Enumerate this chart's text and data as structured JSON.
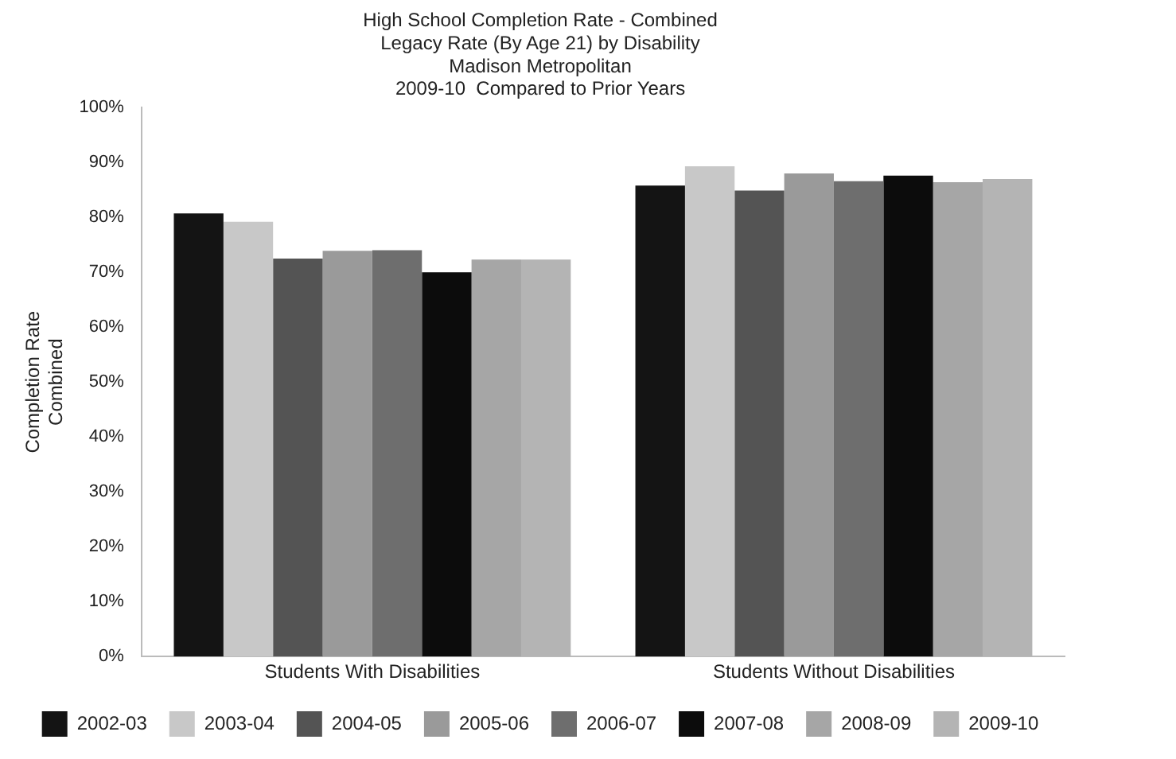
{
  "chart_data": {
    "type": "bar",
    "title": [
      "High School Completion Rate - Combined",
      "Legacy Rate (By Age 21) by Disability",
      "Madison Metropolitan",
      "2009-10  Compared to Prior Years"
    ],
    "ylabel": [
      "Completion Rate",
      "Combined"
    ],
    "categories": [
      "Students With Disabilities",
      "Students Without Disabilities"
    ],
    "series": [
      {
        "name": "2002-03",
        "color": "#141414",
        "values": [
          80.7,
          85.8
        ]
      },
      {
        "name": "2003-04",
        "color": "#c8c8c8",
        "values": [
          79.2,
          89.3
        ]
      },
      {
        "name": "2004-05",
        "color": "#545454",
        "values": [
          72.5,
          84.9
        ]
      },
      {
        "name": "2005-06",
        "color": "#9a9a9a",
        "values": [
          73.9,
          88
        ]
      },
      {
        "name": "2006-07",
        "color": "#6e6e6e",
        "values": [
          74,
          86.6
        ]
      },
      {
        "name": "2007-08",
        "color": "#0c0c0c",
        "values": [
          70,
          87.6
        ]
      },
      {
        "name": "2008-09",
        "color": "#a6a6a6",
        "values": [
          72.3,
          86.4
        ]
      },
      {
        "name": "2009-10",
        "color": "#b4b4b4",
        "values": [
          72.3,
          87
        ]
      }
    ],
    "ylim": [
      0,
      100
    ],
    "yticks": [
      {
        "value": 0,
        "label": "0%"
      },
      {
        "value": 10,
        "label": "10%"
      },
      {
        "value": 20,
        "label": "20%"
      },
      {
        "value": 30,
        "label": "30%"
      },
      {
        "value": 40,
        "label": "40%"
      },
      {
        "value": 50,
        "label": "50%"
      },
      {
        "value": 60,
        "label": "60%"
      },
      {
        "value": 70,
        "label": "70%"
      },
      {
        "value": 80,
        "label": "80%"
      },
      {
        "value": 90,
        "label": "90%"
      },
      {
        "value": 100,
        "label": "100%"
      }
    ],
    "grid": false,
    "legend": "bottom"
  }
}
